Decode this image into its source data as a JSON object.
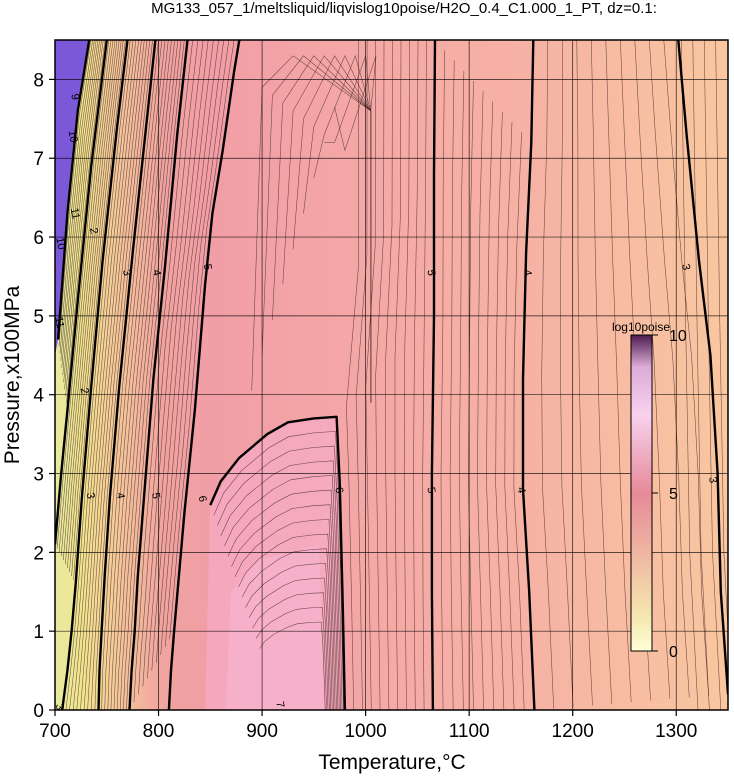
{
  "chart_data": {
    "type": "heatmap",
    "title": "MG133_057_1/meltsliquid/liqvislog10poise/H2O_0.4_C1.000_1_PT, dz=0.1:",
    "xlabel": "Temperature,°C",
    "ylabel": "Pressure,x100MPa",
    "xlim": [
      700,
      1350
    ],
    "ylim": [
      0,
      8.5
    ],
    "xticks": [
      700,
      800,
      900,
      1000,
      1100,
      1200,
      1300
    ],
    "yticks": [
      0,
      1,
      2,
      3,
      4,
      5,
      6,
      7,
      8
    ],
    "xtick_labels": [
      "700",
      "800",
      "900",
      "1000",
      "1100",
      "1200",
      "1300"
    ],
    "ytick_labels": [
      "0",
      "1",
      "2",
      "3",
      "4",
      "5",
      "6",
      "7",
      "8"
    ],
    "grid": true,
    "contour_interval": 0.1,
    "colorbar": {
      "title": "log10poise",
      "range": [
        0,
        10
      ],
      "ticks": [
        0,
        5,
        10
      ],
      "tick_labels": [
        "0",
        "5",
        "10"
      ],
      "colors": [
        "#ffffd6",
        "#f7b7a0",
        "#e98aa0",
        "#f7c8ee",
        "#5a1f5a"
      ],
      "placement": "right-inside"
    },
    "major_contours": [
      {
        "label": "11",
        "points": [
          [
            703,
            4.7
          ],
          [
            712,
            6.3
          ],
          [
            722,
            7.6
          ],
          [
            733,
            8.5
          ]
        ]
      },
      {
        "label": "10",
        "points": [
          [
            700,
            2.1
          ],
          [
            706,
            3.0
          ],
          [
            712,
            3.8
          ],
          [
            722,
            5.2
          ],
          [
            735,
            6.9
          ],
          [
            750,
            8.5
          ]
        ]
      },
      {
        "label": "3",
        "points": [
          [
            707,
            0.0
          ],
          [
            712,
            0.5
          ],
          [
            716,
            1.0
          ],
          [
            720,
            1.6
          ],
          [
            726,
            2.7
          ],
          [
            735,
            4.1
          ],
          [
            746,
            5.7
          ],
          [
            760,
            7.4
          ],
          [
            770,
            8.5
          ]
        ]
      },
      {
        "label": "4",
        "points": [
          [
            742,
            0.0
          ],
          [
            743,
            0.5
          ],
          [
            745,
            1.0
          ],
          [
            748,
            1.7
          ],
          [
            753,
            2.7
          ],
          [
            762,
            4.1
          ],
          [
            775,
            5.8
          ],
          [
            788,
            7.4
          ],
          [
            797,
            8.5
          ]
        ]
      },
      {
        "label": "5",
        "points": [
          [
            772,
            0.0
          ],
          [
            774,
            0.5
          ],
          [
            777,
            1.0
          ],
          [
            780,
            1.7
          ],
          [
            786,
            2.7
          ],
          [
            795,
            4.2
          ],
          [
            806,
            5.6
          ],
          [
            818,
            7.3
          ],
          [
            828,
            8.5
          ]
        ]
      },
      {
        "label": "6",
        "points": [
          [
            810,
            0.0
          ],
          [
            812,
            0.5
          ],
          [
            815,
            1.0
          ],
          [
            819,
            1.6
          ],
          [
            825,
            2.5
          ],
          [
            835,
            3.8
          ],
          [
            845,
            5.4
          ],
          [
            852,
            6.3
          ],
          [
            862,
            7.1
          ],
          [
            873,
            8.1
          ],
          [
            878,
            8.5
          ]
        ]
      },
      {
        "label": "6",
        "points": [
          [
            850,
            2.6
          ],
          [
            860,
            2.9
          ],
          [
            878,
            3.2
          ],
          [
            905,
            3.5
          ],
          [
            925,
            3.65
          ],
          [
            950,
            3.7
          ],
          [
            972,
            3.72
          ],
          [
            975,
            2.9
          ],
          [
            978,
            1.3
          ],
          [
            980,
            0.0
          ]
        ]
      },
      {
        "label": "5",
        "points": [
          [
            1065,
            0.0
          ],
          [
            1064,
            1.5
          ],
          [
            1064,
            3.0
          ],
          [
            1066,
            5.0
          ],
          [
            1066,
            6.8
          ],
          [
            1067,
            8.5
          ]
        ]
      },
      {
        "label": "4",
        "points": [
          [
            1163,
            0.0
          ],
          [
            1158,
            1.5
          ],
          [
            1152,
            2.8
          ],
          [
            1152,
            4.2
          ],
          [
            1155,
            5.8
          ],
          [
            1160,
            7.2
          ],
          [
            1162,
            8.5
          ]
        ]
      },
      {
        "label": "3",
        "points": [
          [
            1350,
            0.2
          ],
          [
            1343,
            1.5
          ],
          [
            1340,
            3.0
          ],
          [
            1333,
            4.5
          ],
          [
            1322,
            5.7
          ],
          [
            1310,
            7.3
          ],
          [
            1302,
            8.5
          ]
        ]
      }
    ],
    "contour_labels": [
      {
        "text": "11",
        "x": 720,
        "y": 6.3
      },
      {
        "text": "11",
        "x": 705,
        "y": 4.92
      },
      {
        "text": "10",
        "x": 718,
        "y": 7.28
      },
      {
        "text": "10",
        "x": 706,
        "y": 5.92
      },
      {
        "text": "9",
        "x": 720,
        "y": 7.78
      },
      {
        "text": "2",
        "x": 738,
        "y": 6.08
      },
      {
        "text": "3",
        "x": 735,
        "y": 2.72
      },
      {
        "text": "4",
        "x": 764,
        "y": 2.72
      },
      {
        "text": "5",
        "x": 798,
        "y": 2.72
      },
      {
        "text": "6",
        "x": 843,
        "y": 2.68
      },
      {
        "text": "2",
        "x": 729,
        "y": 4.05
      },
      {
        "text": "3",
        "x": 770,
        "y": 5.55
      },
      {
        "text": "4",
        "x": 799,
        "y": 5.55
      },
      {
        "text": "5",
        "x": 848,
        "y": 5.62
      },
      {
        "text": "6",
        "x": 975,
        "y": 2.79
      },
      {
        "text": "5",
        "x": 1064,
        "y": 2.79
      },
      {
        "text": "5",
        "x": 1064,
        "y": 5.55
      },
      {
        "text": "4",
        "x": 1151,
        "y": 2.79
      },
      {
        "text": "4",
        "x": 1157,
        "y": 5.55
      },
      {
        "text": "3",
        "x": 1336,
        "y": 2.92
      },
      {
        "text": "3",
        "x": 1310,
        "y": 5.62
      },
      {
        "text": "7",
        "x": 918,
        "y": 0.07
      },
      {
        "text": "3",
        "x": 705,
        "y": 0.04
      }
    ]
  }
}
